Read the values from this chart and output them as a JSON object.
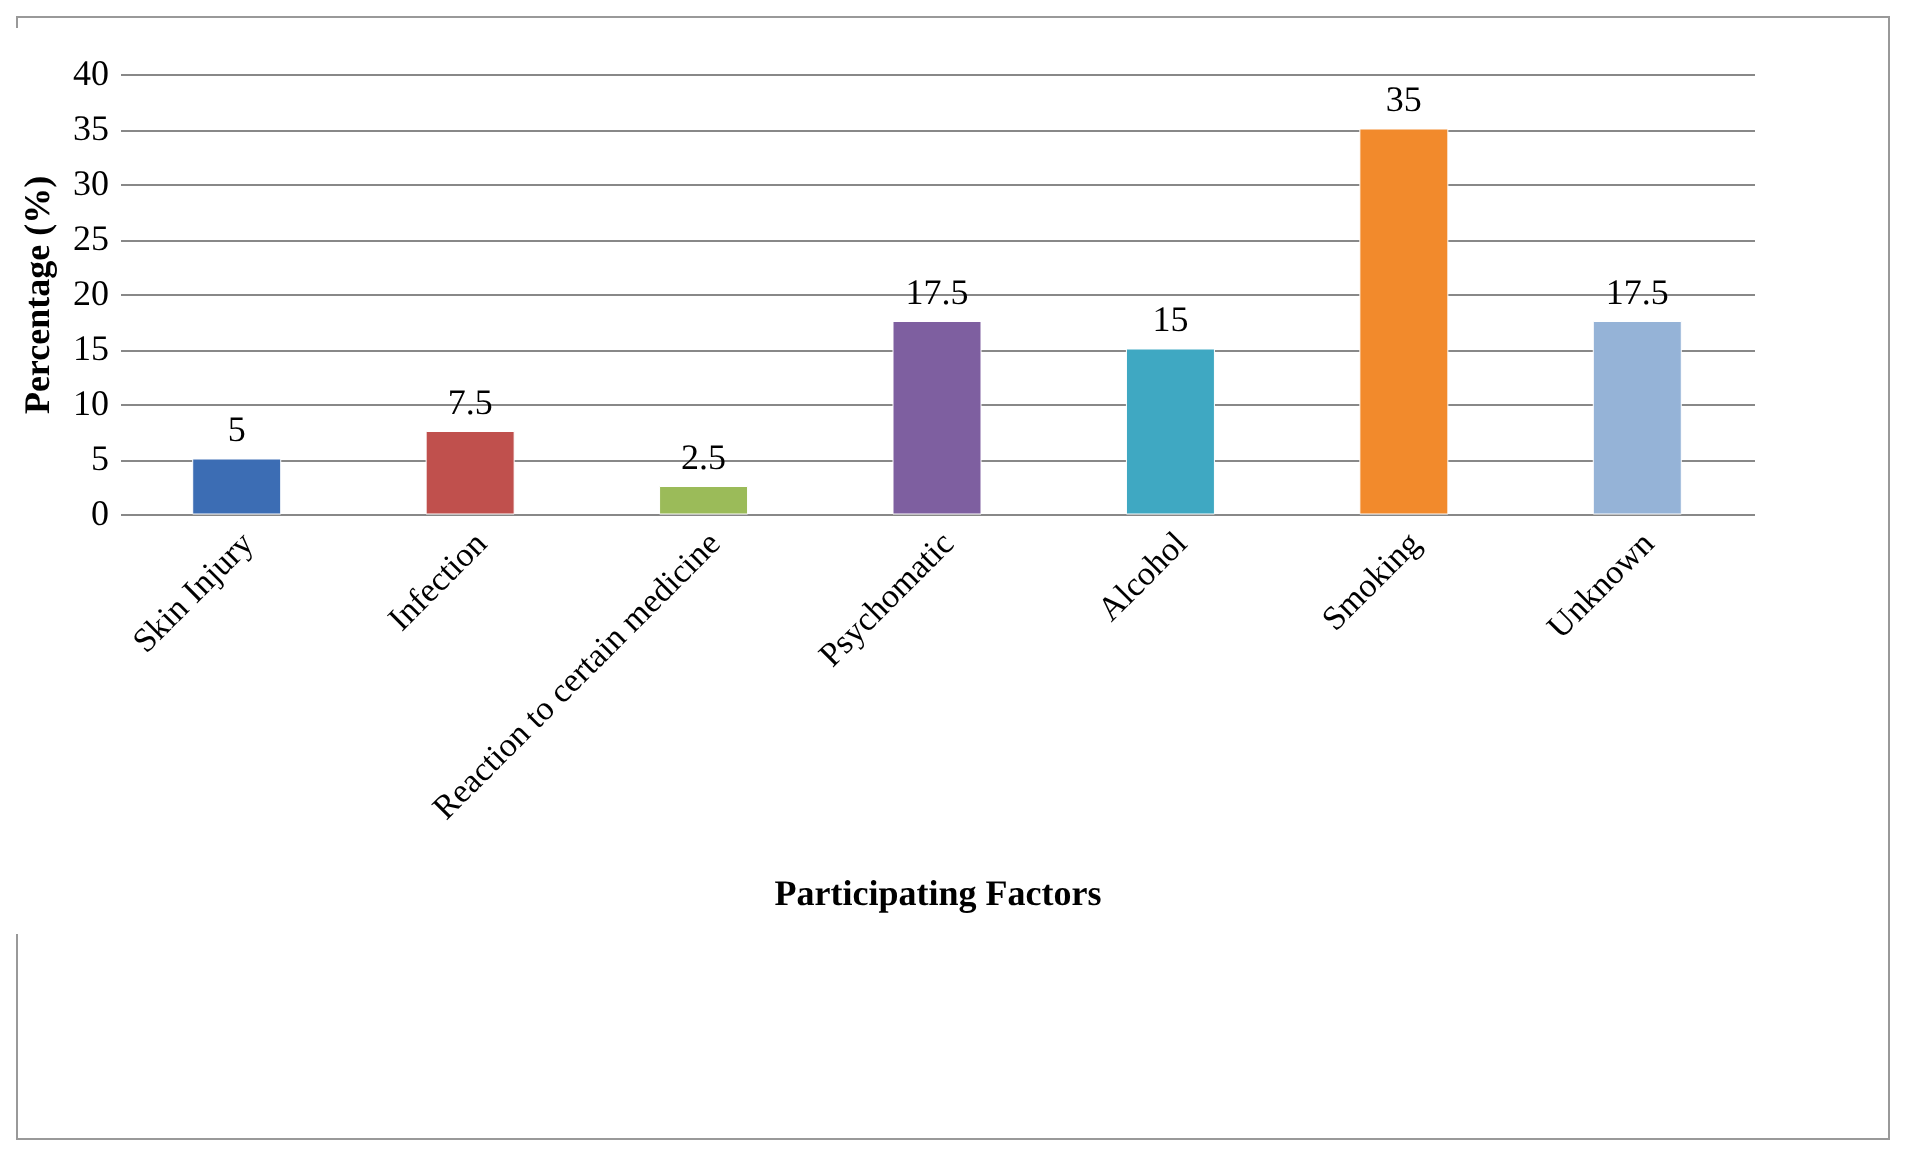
{
  "chart_data": {
    "type": "bar",
    "xlabel": "Participating Factors",
    "ylabel": "Percentage (%)",
    "categories": [
      "Skin Injury",
      "Infection",
      "Reaction to certain medicine",
      "Psychomatic",
      "Alcohol",
      "Smoking",
      "Unknown"
    ],
    "values": [
      5,
      7.5,
      2.5,
      17.5,
      15,
      35,
      17.5
    ],
    "colors": [
      "#3c6db4",
      "#c0504d",
      "#9bbb59",
      "#7e5fa0",
      "#3fa8c2",
      "#f28a2c",
      "#95b3d7"
    ],
    "ylim": [
      0,
      40
    ],
    "yticks": [
      0,
      5,
      10,
      15,
      20,
      25,
      30,
      35,
      40
    ],
    "grid": "y",
    "data_labels": true
  }
}
